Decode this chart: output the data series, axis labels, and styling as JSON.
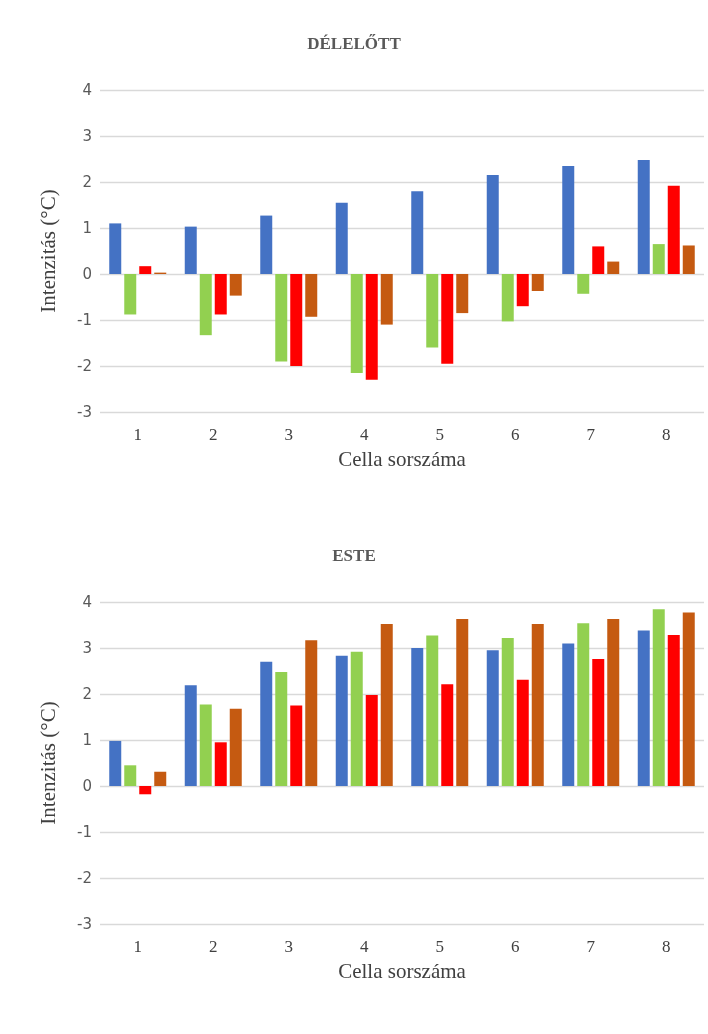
{
  "chart_data": [
    {
      "type": "bar",
      "title": "DÉLELŐTT",
      "xlabel": "Cella sorszáma",
      "ylabel": "Intenzitás (°C)",
      "categories": [
        "1",
        "2",
        "3",
        "4",
        "5",
        "6",
        "7",
        "8"
      ],
      "series": [
        {
          "color": "#4472c4",
          "values": [
            1.1,
            1.03,
            1.27,
            1.55,
            1.8,
            2.15,
            2.35,
            2.48
          ]
        },
        {
          "color": "#92d050",
          "values": [
            -0.88,
            -1.33,
            -1.9,
            -2.15,
            -1.6,
            -1.03,
            -0.43,
            0.65
          ]
        },
        {
          "color": "#ff0000",
          "values": [
            0.17,
            -0.88,
            -2.0,
            -2.3,
            -1.95,
            -0.7,
            0.6,
            1.92
          ]
        },
        {
          "color": "#c55a11",
          "values": [
            0.03,
            -0.47,
            -0.93,
            -1.1,
            -0.85,
            -0.37,
            0.27,
            0.62
          ]
        }
      ],
      "ylim": [
        -3,
        4
      ],
      "yticks": [
        -3,
        -2,
        -1,
        0,
        1,
        2,
        3,
        4
      ],
      "grid": "y"
    },
    {
      "type": "bar",
      "title": "ESTE",
      "xlabel": "Cella sorszáma",
      "ylabel": "Intenzitás (°C)",
      "categories": [
        "1",
        "2",
        "3",
        "4",
        "5",
        "6",
        "7",
        "8"
      ],
      "series": [
        {
          "color": "#4472c4",
          "values": [
            0.98,
            2.19,
            2.7,
            2.83,
            3.0,
            2.95,
            3.1,
            3.38
          ]
        },
        {
          "color": "#92d050",
          "values": [
            0.45,
            1.77,
            2.48,
            2.92,
            3.27,
            3.22,
            3.54,
            3.84
          ]
        },
        {
          "color": "#ff0000",
          "values": [
            -0.18,
            0.95,
            1.75,
            1.98,
            2.21,
            2.31,
            2.76,
            3.28
          ]
        },
        {
          "color": "#c55a11",
          "values": [
            0.31,
            1.68,
            3.17,
            3.52,
            3.63,
            3.52,
            3.63,
            3.77
          ]
        }
      ],
      "ylim": [
        -3,
        4
      ],
      "yticks": [
        -3,
        -2,
        -1,
        0,
        1,
        2,
        3,
        4
      ],
      "grid": "y"
    }
  ]
}
